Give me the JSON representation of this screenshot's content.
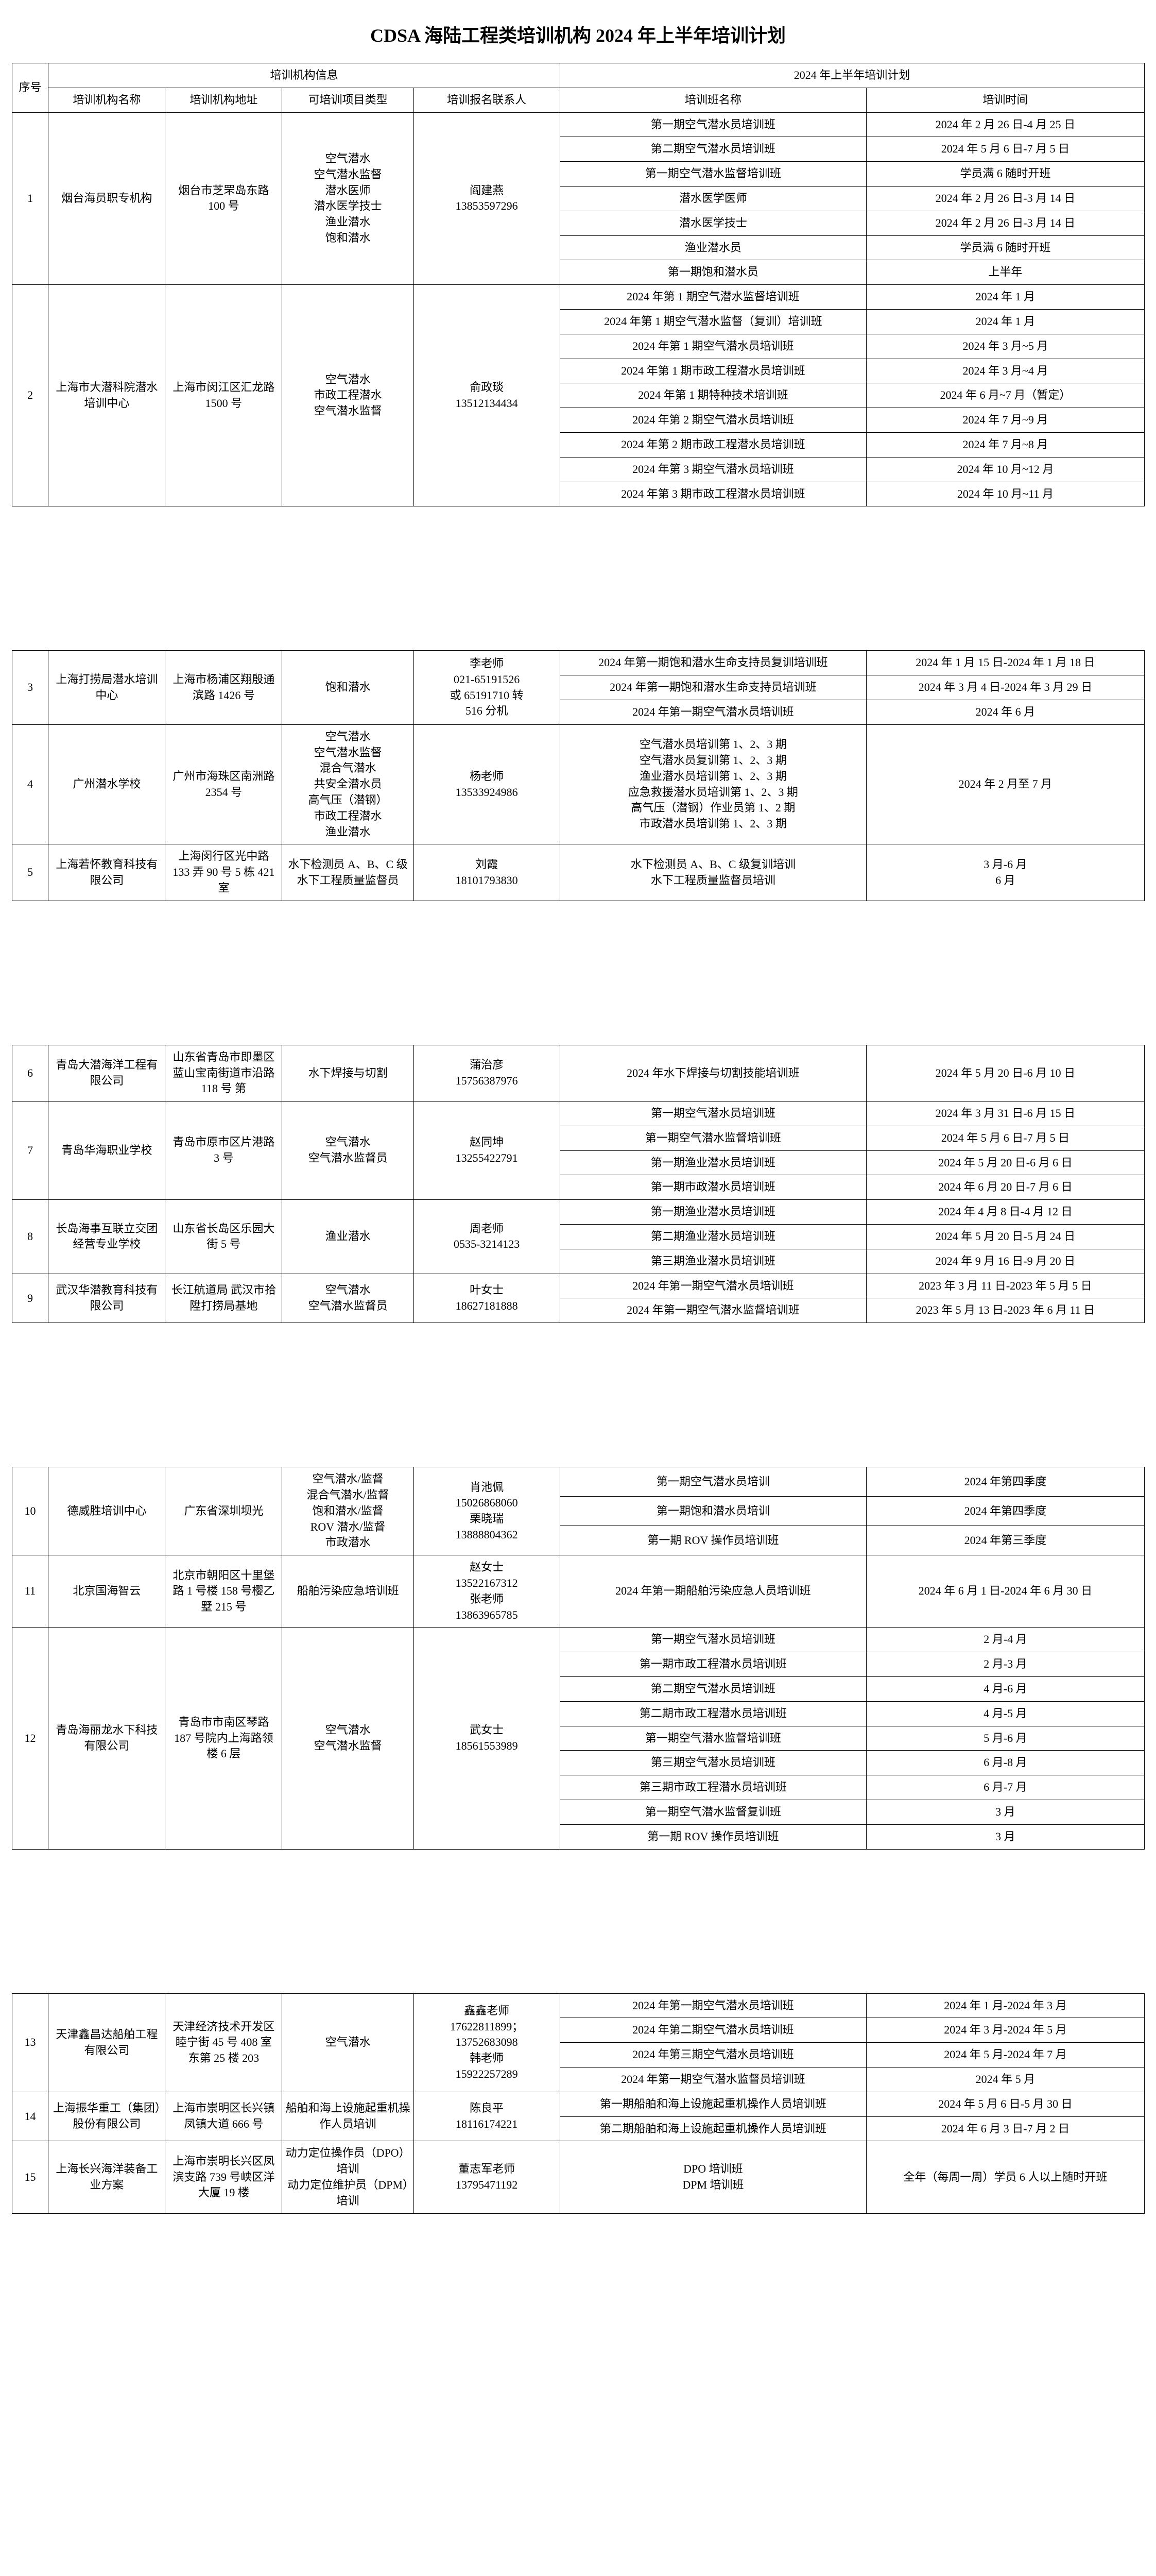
{
  "title": "CDSA 海陆工程类培训机构 2024 年上半年培训计划",
  "header": {
    "seq": "序号",
    "info_group": "培训机构信息",
    "plan_group": "2024 年上半年培训计划",
    "org_name": "培训机构名称",
    "org_addr": "培训机构地址",
    "proj_type": "可培训项目类型",
    "contact": "培训报名联系人",
    "class_name": "培训班名称",
    "time": "培训时间"
  },
  "rows": [
    {
      "seq": "1",
      "org_name": "烟台海员职专机构",
      "org_addr": "烟台市芝罘岛东路 100 号",
      "proj_type": "空气潜水\n空气潜水监督\n潜水医师\n潜水医学技士\n渔业潜水\n饱和潜水",
      "contact": "阎建燕\n13853597296",
      "classes": [
        {
          "name": "第一期空气潜水员培训班",
          "time": "2024 年 2 月 26 日-4 月 25 日"
        },
        {
          "name": "第二期空气潜水员培训班",
          "time": "2024 年 5 月 6 日-7 月 5 日"
        },
        {
          "name": "第一期空气潜水监督培训班",
          "time": "学员满 6 随时开班"
        },
        {
          "name": "潜水医学医师",
          "time": "2024 年 2 月 26 日-3 月 14 日"
        },
        {
          "name": "潜水医学技士",
          "time": "2024 年 2 月 26 日-3 月 14 日"
        },
        {
          "name": "渔业潜水员",
          "time": "学员满 6 随时开班"
        },
        {
          "name": "第一期饱和潜水员",
          "time": "上半年"
        }
      ]
    },
    {
      "seq": "2",
      "org_name": "上海市大潜科院潜水培训中心",
      "org_addr": "上海市闵江区汇龙路 1500 号",
      "proj_type": "空气潜水\n市政工程潜水\n空气潜水监督",
      "contact": "俞政琰\n13512134434",
      "classes": [
        {
          "name": "2024 年第 1 期空气潜水监督培训班",
          "time": "2024 年 1 月"
        },
        {
          "name": "2024 年第 1 期空气潜水监督（复训）培训班",
          "time": "2024 年 1 月"
        },
        {
          "name": "2024 年第 1 期空气潜水员培训班",
          "time": "2024 年 3 月~5 月"
        },
        {
          "name": "2024 年第 1 期市政工程潜水员培训班",
          "time": "2024 年 3 月~4 月"
        },
        {
          "name": "2024 年第 1 期特种技术培训班",
          "time": "2024 年 6 月~7 月（暂定）"
        },
        {
          "name": "2024 年第 2 期空气潜水员培训班",
          "time": "2024 年 7 月~9 月"
        },
        {
          "name": "2024 年第 2 期市政工程潜水员培训班",
          "time": "2024 年 7 月~8 月"
        },
        {
          "name": "2024 年第 3 期空气潜水员培训班",
          "time": "2024 年 10 月~12 月"
        },
        {
          "name": "2024 年第 3 期市政工程潜水员培训班",
          "time": "2024 年 10 月~11 月"
        }
      ]
    },
    {
      "seq": "3",
      "org_name": "上海打捞局潜水培训中心",
      "org_addr": "上海市杨浦区翔殷通滨路 1426 号",
      "proj_type": "饱和潜水",
      "contact": "李老师\n021-65191526\n或 65191710 转\n516 分机",
      "classes": [
        {
          "name": "2024 年第一期饱和潜水生命支持员复训培训班",
          "time": "2024 年 1 月 15 日-2024 年 1 月 18 日"
        },
        {
          "name": "2024 年第一期饱和潜水生命支持员培训班",
          "time": "2024 年 3 月 4 日-2024 年 3 月 29 日"
        },
        {
          "name": "2024 年第一期空气潜水员培训班",
          "time": "2024 年 6 月"
        }
      ]
    },
    {
      "seq": "4",
      "org_name": "广州潜水学校",
      "org_addr": "广州市海珠区南洲路 2354 号",
      "proj_type": "空气潜水\n空气潜水监督\n混合气潜水\n共安全潜水员\n高气压（潜钢）\n市政工程潜水\n渔业潜水",
      "contact": "杨老师\n13533924986",
      "classes_merged": "空气潜水员培训第 1、2、3 期\n空气潜水员复训第 1、2、3 期\n渔业潜水员培训第 1、2、3 期\n应急救援潜水员培训第 1、2、3 期\n高气压（潜钢）作业员第 1、2 期\n市政潜水员培训第 1、2、3 期",
      "time_merged": "2024 年 2 月至 7 月"
    },
    {
      "seq": "5",
      "org_name": "上海若怀教育科技有限公司",
      "org_addr": "上海闵行区光中路 133 弄 90 号 5 栋 421 室",
      "proj_type": "水下检测员 A、B、C 级\n水下工程质量监督员",
      "contact": "刘霞\n18101793830",
      "classes_merged": "水下检测员 A、B、C 级复训培训\n水下工程质量监督员培训",
      "time_merged": "3 月-6 月\n6 月"
    },
    {
      "seq": "6",
      "org_name": "青岛大潜海洋工程有限公司",
      "org_addr": "山东省青岛市即墨区蓝山宝南街道市沿路 118 号 第",
      "proj_type": "水下焊接与切割",
      "contact": "蒲治彦\n15756387976",
      "classes": [
        {
          "name": "2024 年水下焊接与切割技能培训班",
          "time": "2024 年 5 月 20 日-6 月 10 日"
        }
      ]
    },
    {
      "seq": "7",
      "org_name": "青岛华海职业学校",
      "org_addr": "青岛市原市区片港路 3 号",
      "proj_type": "空气潜水\n空气潜水监督员",
      "contact": "赵同坤\n13255422791",
      "classes": [
        {
          "name": "第一期空气潜水员培训班",
          "time": "2024 年 3 月 31 日-6 月 15 日"
        },
        {
          "name": "第一期空气潜水监督培训班",
          "time": "2024 年 5 月 6 日-7 月 5 日"
        },
        {
          "name": "第一期渔业潜水员培训班",
          "time": "2024 年 5 月 20 日-6 月 6 日"
        },
        {
          "name": "第一期市政潜水员培训班",
          "time": "2024 年 6 月 20 日-7 月 6 日"
        }
      ]
    },
    {
      "seq": "8",
      "org_name": "长岛海事互联立交团经营专业学校",
      "org_addr": "山东省长岛区乐园大街 5 号",
      "proj_type": "渔业潜水",
      "contact": "周老师\n0535-3214123",
      "classes": [
        {
          "name": "第一期渔业潜水员培训班",
          "time": "2024 年 4 月 8 日-4 月 12 日"
        },
        {
          "name": "第二期渔业潜水员培训班",
          "time": "2024 年 5 月 20 日-5 月 24 日"
        },
        {
          "name": "第三期渔业潜水员培训班",
          "time": "2024 年 9 月 16 日-9 月 20 日"
        }
      ]
    },
    {
      "seq": "9",
      "org_name": "武汉华潜教育科技有限公司",
      "org_addr": "长江航道局 武汉市拾陞打捞局基地",
      "proj_type": "空气潜水\n空气潜水监督员",
      "contact": "叶女士\n18627181888",
      "classes": [
        {
          "name": "2024 年第一期空气潜水员培训班",
          "time": "2023 年 3 月 11 日-2023 年 5 月 5 日"
        },
        {
          "name": "2024 年第一期空气潜水监督培训班",
          "time": "2023 年 5 月 13 日-2023 年 6 月 11 日"
        }
      ]
    },
    {
      "seq": "10",
      "org_name": "德威胜培训中心",
      "org_addr": "广东省深圳坝光",
      "proj_type": "空气潜水/监督\n混合气潜水/监督\n饱和潜水/监督\nROV 潜水/监督\n市政潜水",
      "contact": "肖池佩\n15026868060\n栗晓瑞\n13888804362",
      "classes": [
        {
          "name": "第一期空气潜水员培训",
          "time": "2024 年第四季度"
        },
        {
          "name": "第一期饱和潜水员培训",
          "time": "2024 年第四季度"
        },
        {
          "name": "第一期 ROV 操作员培训班",
          "time": "2024 年第三季度"
        }
      ]
    },
    {
      "seq": "11",
      "org_name": "北京国海智云",
      "org_addr": "北京市朝阳区十里堡路 1 号楼 158 号樱乙墅 215 号",
      "proj_type": "船舶污染应急培训班",
      "contact": "赵女士\n13522167312\n张老师\n13863965785",
      "classes": [
        {
          "name": "2024 年第一期船舶污染应急人员培训班",
          "time": "2024 年 6 月 1 日-2024 年 6 月 30 日"
        }
      ]
    },
    {
      "seq": "12",
      "org_name": "青岛海丽龙水下科技有限公司",
      "org_addr": "青岛市市南区琴路 187 号院内上海路领楼 6 层",
      "proj_type": "空气潜水\n空气潜水监督",
      "contact": "武女士\n18561553989",
      "classes": [
        {
          "name": "第一期空气潜水员培训班",
          "time": "2 月-4 月"
        },
        {
          "name": "第一期市政工程潜水员培训班",
          "time": "2 月-3 月"
        },
        {
          "name": "第二期空气潜水员培训班",
          "time": "4 月-6 月"
        },
        {
          "name": "第二期市政工程潜水员培训班",
          "time": "4 月-5 月"
        },
        {
          "name": "第一期空气潜水监督培训班",
          "time": "5 月-6 月"
        },
        {
          "name": "第三期空气潜水员培训班",
          "time": "6 月-8 月"
        },
        {
          "name": "第三期市政工程潜水员培训班",
          "time": "6 月-7 月"
        },
        {
          "name": "第一期空气潜水监督复训班",
          "time": "3 月"
        },
        {
          "name": "第一期 ROV 操作员培训班",
          "time": "3 月"
        }
      ]
    },
    {
      "seq": "13",
      "org_name": "天津鑫昌达船舶工程有限公司",
      "org_addr": "天津经济技术开发区睦宁街 45 号 408 室 东第 25 楼 203",
      "proj_type": "空气潜水",
      "contact": "鑫鑫老师\n17622811899；\n13752683098\n韩老师\n15922257289",
      "classes": [
        {
          "name": "2024 年第一期空气潜水员培训班",
          "time": "2024 年 1 月-2024 年 3 月"
        },
        {
          "name": "2024 年第二期空气潜水员培训班",
          "time": "2024 年 3 月-2024 年 5 月"
        },
        {
          "name": "2024 年第三期空气潜水员培训班",
          "time": "2024 年 5 月-2024 年 7 月"
        },
        {
          "name": "2024 年第一期空气潜水监督员培训班",
          "time": "2024 年 5 月"
        }
      ]
    },
    {
      "seq": "14",
      "org_name": "上海振华重工（集团）股份有限公司",
      "org_addr": "上海市崇明区长兴镇凤镇大道 666 号",
      "proj_type": "船舶和海上设施起重机操作人员培训",
      "contact": "陈良平\n18116174221",
      "classes": [
        {
          "name": "第一期船舶和海上设施起重机操作人员培训班",
          "time": "2024 年 5 月 6 日-5 月 30 日"
        },
        {
          "name": "第二期船舶和海上设施起重机操作人员培训班",
          "time": "2024 年 6 月 3 日-7 月 2 日"
        }
      ]
    },
    {
      "seq": "15",
      "org_name": "上海长兴海洋装备工业方案",
      "org_addr": "上海市崇明长兴区凤滨支路 739 号峡区洋大厦 19 楼",
      "proj_type": "动力定位操作员（DPO）培训\n动力定位维护员（DPM）培训",
      "contact": "董志军老师\n13795471192",
      "classes_merged": "DPO 培训班\nDPM 培训班",
      "time_merged": "全年（每周一周）学员 6 人以上随时开班"
    }
  ]
}
